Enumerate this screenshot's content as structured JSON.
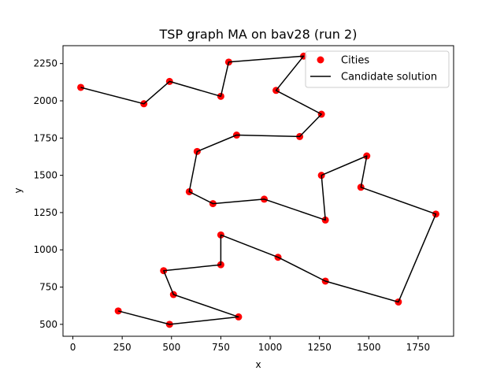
{
  "chart_data": {
    "type": "scatter",
    "title": "TSP graph MA on bav28 (run 2)",
    "xlabel": "x",
    "ylabel": "y",
    "xlim": [
      -50,
      1930
    ],
    "ylim": [
      420,
      2370
    ],
    "xticks": [
      0,
      250,
      500,
      750,
      1000,
      1250,
      1500,
      1750
    ],
    "yticks": [
      500,
      750,
      1000,
      1250,
      1500,
      1750,
      2000,
      2250
    ],
    "grid": false,
    "legend": {
      "position": "top-right",
      "entries": [
        "Cities",
        "Candidate solution"
      ]
    },
    "colors": {
      "cities": "#ff0000",
      "route": "#000000"
    },
    "series": [
      {
        "name": "Cities",
        "kind": "points",
        "points": [
          [
            40,
            2090
          ],
          [
            360,
            1980
          ],
          [
            490,
            2130
          ],
          [
            750,
            2030
          ],
          [
            790,
            2260
          ],
          [
            1170,
            2300
          ],
          [
            1030,
            2070
          ],
          [
            1260,
            1910
          ],
          [
            1150,
            1760
          ],
          [
            830,
            1770
          ],
          [
            630,
            1660
          ],
          [
            590,
            1390
          ],
          [
            710,
            1310
          ],
          [
            970,
            1340
          ],
          [
            1280,
            1200
          ],
          [
            1260,
            1500
          ],
          [
            1490,
            1630
          ],
          [
            1460,
            1420
          ],
          [
            1840,
            1240
          ],
          [
            1650,
            650
          ],
          [
            1280,
            790
          ],
          [
            1040,
            950
          ],
          [
            750,
            1100
          ],
          [
            750,
            900
          ],
          [
            460,
            860
          ],
          [
            510,
            700
          ],
          [
            840,
            550
          ],
          [
            490,
            500
          ],
          [
            230,
            590
          ]
        ]
      },
      {
        "name": "Candidate solution",
        "kind": "path",
        "points": [
          [
            40,
            2090
          ],
          [
            360,
            1980
          ],
          [
            490,
            2130
          ],
          [
            750,
            2030
          ],
          [
            790,
            2260
          ],
          [
            1170,
            2300
          ],
          [
            1030,
            2070
          ],
          [
            1260,
            1910
          ],
          [
            1150,
            1760
          ],
          [
            830,
            1770
          ],
          [
            630,
            1660
          ],
          [
            590,
            1390
          ],
          [
            710,
            1310
          ],
          [
            970,
            1340
          ],
          [
            1280,
            1200
          ],
          [
            1260,
            1500
          ],
          [
            1490,
            1630
          ],
          [
            1460,
            1420
          ],
          [
            1840,
            1240
          ],
          [
            1650,
            650
          ],
          [
            1280,
            790
          ],
          [
            1040,
            950
          ],
          [
            750,
            1100
          ],
          [
            750,
            900
          ],
          [
            460,
            860
          ],
          [
            510,
            700
          ],
          [
            840,
            550
          ],
          [
            490,
            500
          ],
          [
            230,
            590
          ]
        ]
      }
    ]
  }
}
